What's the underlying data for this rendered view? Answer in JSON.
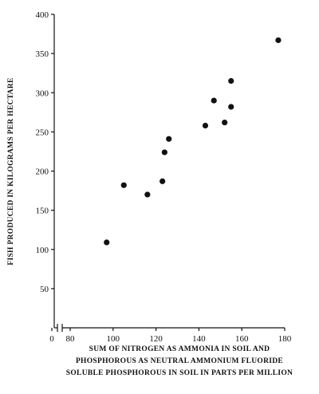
{
  "chart_data": {
    "type": "scatter",
    "y_label": "FISH PRODUCED IN KILOGRAMS PER HECTARE",
    "x_label": [
      "SUM OF NITROGEN AS AMMONIA IN SOIL AND",
      "PHOSPHOROUS AS NEUTRAL AMMONIUM FLUORIDE",
      "SOLUBLE PHOSPHOROUS IN SOIL IN PARTS PER MILLION"
    ],
    "x": [
      97,
      105,
      116,
      123,
      124,
      126,
      143,
      147,
      152,
      155,
      155,
      177
    ],
    "values": [
      109,
      182,
      170,
      187,
      224,
      241,
      258,
      290,
      262,
      282,
      315,
      367
    ],
    "color": "#111111",
    "xlim": [
      0,
      180
    ],
    "xticks": [
      0,
      80,
      100,
      120,
      140,
      160,
      180
    ],
    "x_axis_break": true,
    "ylim": [
      0,
      400
    ],
    "yticks": [
      50,
      100,
      150,
      200,
      250,
      300,
      350,
      400
    ]
  }
}
